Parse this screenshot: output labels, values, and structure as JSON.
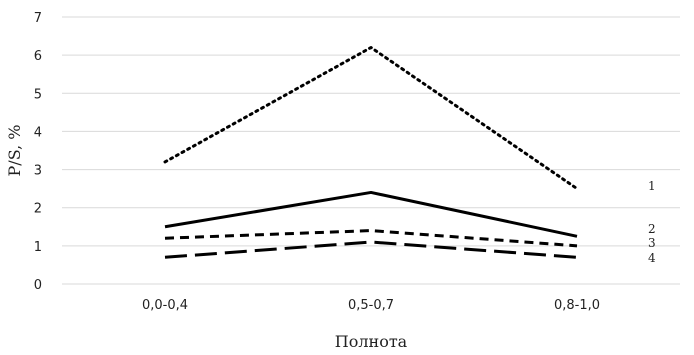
{
  "chart_data": {
    "type": "line",
    "title": "",
    "xlabel": "Полнота",
    "ylabel": "P/S, %",
    "categories": [
      "0,0-0,4",
      "0,5-0,7",
      "0,8-1,0"
    ],
    "ylim": [
      0,
      7
    ],
    "yticks": [
      "0",
      "1",
      "2",
      "3",
      "4",
      "5",
      "6",
      "7"
    ],
    "grid": "horizontal",
    "legend": "none",
    "series": [
      {
        "label": "1",
        "style": "dotted",
        "color": "#000000",
        "values": [
          3.2,
          6.2,
          2.5
        ]
      },
      {
        "label": "2",
        "style": "solid",
        "color": "#000000",
        "values": [
          1.5,
          2.4,
          1.25
        ]
      },
      {
        "label": "3",
        "style": "dashed",
        "color": "#000000",
        "values": [
          1.2,
          1.4,
          1.0
        ]
      },
      {
        "label": "4",
        "style": "long-dashed",
        "color": "#000000",
        "values": [
          0.7,
          1.1,
          0.7
        ]
      }
    ]
  }
}
